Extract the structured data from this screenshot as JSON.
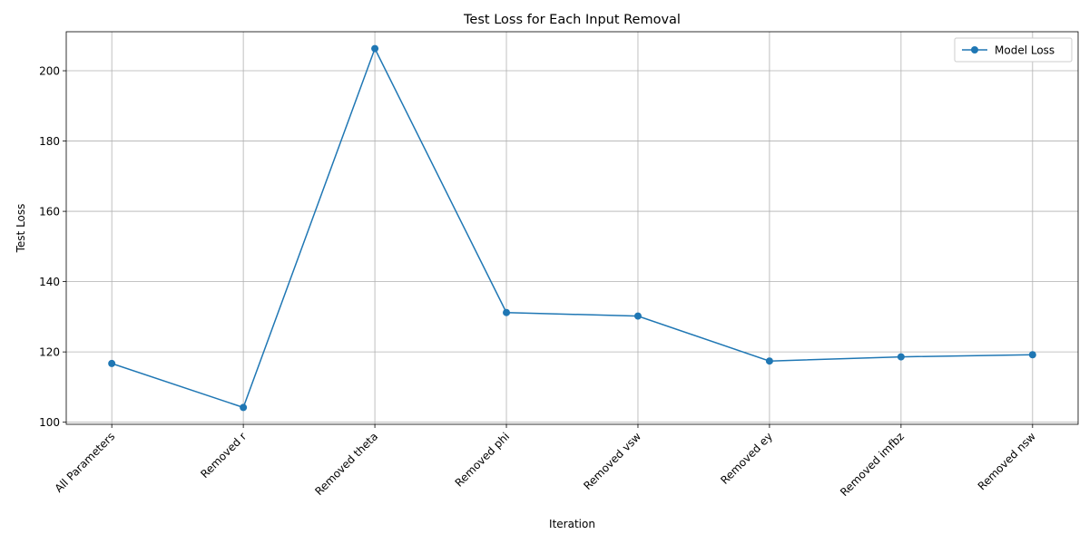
{
  "chart_data": {
    "type": "line",
    "title": "Test Loss for Each Input Removal",
    "xlabel": "Iteration",
    "ylabel": "Test Loss",
    "categories": [
      "All Parameters",
      "Removed r",
      "Removed theta",
      "Removed phi",
      "Removed vsw",
      "Removed ey",
      "Removed imfbz",
      "Removed nsw"
    ],
    "series": [
      {
        "name": "Model Loss",
        "values": [
          116.7,
          104.2,
          206.3,
          131.2,
          130.2,
          117.4,
          118.6,
          119.2
        ],
        "color": "#1f77b4"
      }
    ],
    "ylim": [
      99.4,
      211.1
    ],
    "yticks": [
      100,
      120,
      140,
      160,
      180,
      200
    ],
    "grid": true,
    "legend_position": "top-right",
    "xtick_rotation": 45,
    "marker": "circle"
  }
}
